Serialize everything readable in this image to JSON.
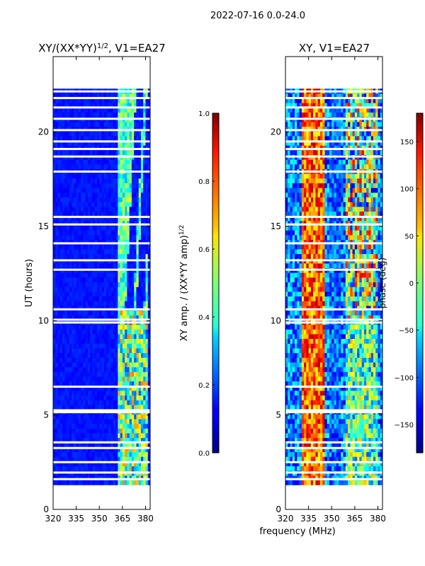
{
  "figure": {
    "suptitle": "2022-07-16 0.0-24.0",
    "xlabel_shared": "frequency (MHz)"
  },
  "chart_data": [
    {
      "type": "heatmap",
      "title_main": "XY/(XX*YY)",
      "title_sup": "1/2",
      "title_tail": ", V1=EA27",
      "ylabel": "UT (hours)",
      "xlim": [
        320,
        383
      ],
      "ylim": [
        0,
        24
      ],
      "xticks": [
        320,
        335,
        350,
        365,
        380
      ],
      "yticks": [
        0,
        5,
        10,
        15,
        20
      ],
      "data_extent_hours": [
        1.3,
        22.3
      ],
      "colorbar": {
        "label_main": "XY amp. / (XX*YY amp)",
        "label_sup": "1/2",
        "range": [
          0.0,
          1.0
        ],
        "ticks": [
          "0.0",
          "0.2",
          "0.4",
          "0.6",
          "0.8",
          "1.0"
        ],
        "colormap": "jet"
      }
    },
    {
      "type": "heatmap",
      "title": "XY, V1=EA27",
      "ylabel": "",
      "xlim": [
        320,
        383
      ],
      "ylim": [
        0,
        24
      ],
      "xticks": [
        320,
        335,
        350,
        365,
        380
      ],
      "yticks": [
        0,
        5,
        10,
        15,
        20
      ],
      "data_extent_hours": [
        1.3,
        22.3
      ],
      "colorbar": {
        "label": "phase (deg)",
        "range": [
          -180,
          180
        ],
        "ticks": [
          "150",
          "100",
          "50",
          "0",
          "−50",
          "−100",
          "−150"
        ],
        "colormap": "jet"
      }
    }
  ],
  "flagged_hours": [
    1.6,
    1.95,
    2.5,
    3.25,
    3.55,
    5.15,
    5.25,
    6.5,
    9.9,
    10.05,
    10.6,
    12.7,
    13.2,
    14.1,
    15.1,
    15.5,
    17.9,
    18.7,
    19.1,
    19.5,
    20.1,
    20.7,
    21.3,
    21.8,
    22.15
  ]
}
